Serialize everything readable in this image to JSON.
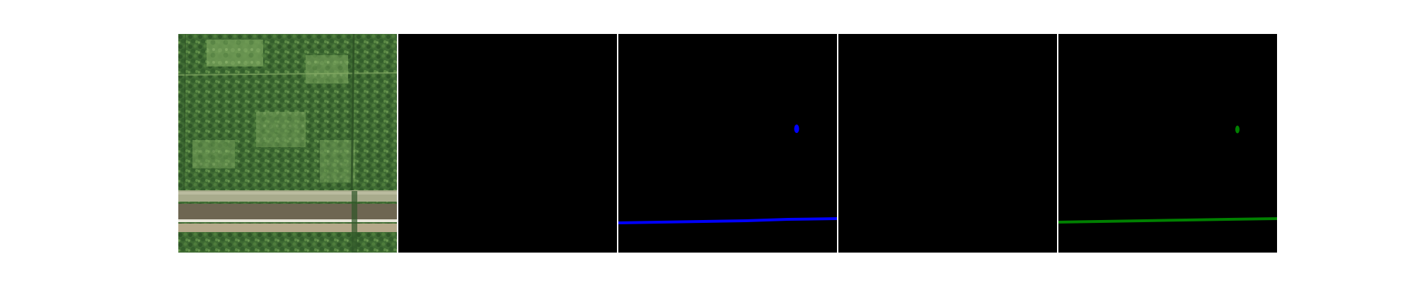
{
  "figure": {
    "panels": [
      {
        "name": "aerial-image",
        "kind": "photo"
      },
      {
        "name": "mask-empty-1",
        "kind": "mask",
        "color": "#000000"
      },
      {
        "name": "mask-blue",
        "kind": "mask",
        "color": "#0000ff"
      },
      {
        "name": "mask-empty-2",
        "kind": "mask",
        "color": "#000000"
      },
      {
        "name": "mask-green",
        "kind": "mask",
        "color": "#008000"
      }
    ],
    "colors": {
      "background": "#000000",
      "blue_mask": "#0000ff",
      "green_mask": "#008000"
    }
  }
}
